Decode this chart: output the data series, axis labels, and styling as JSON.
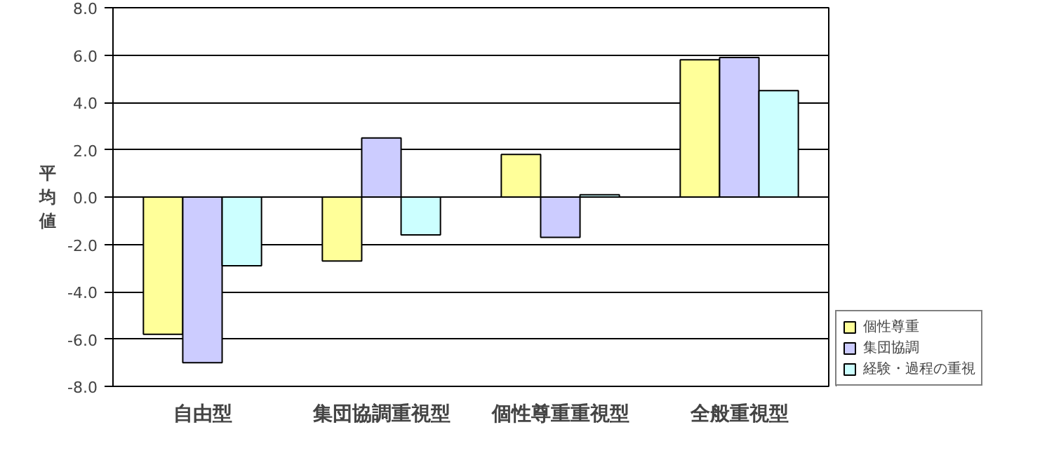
{
  "chart_data": {
    "type": "bar",
    "ylabel": "平均値",
    "categories": [
      "自由型",
      "集団協調重視型",
      "個性尊重重視型",
      "全般重視型"
    ],
    "series": [
      {
        "name": "個性尊重",
        "color": "#ffff99",
        "values": [
          -5.8,
          -2.7,
          1.8,
          5.8
        ]
      },
      {
        "name": "集団協調",
        "color": "#ccccff",
        "values": [
          -7.0,
          2.5,
          -1.7,
          5.9
        ]
      },
      {
        "name": "経験・過程の重視",
        "color": "#ccffff",
        "values": [
          -2.9,
          -1.6,
          0.1,
          4.5
        ]
      }
    ],
    "ylim": [
      -8,
      8
    ],
    "yticks": [
      {
        "value": -8,
        "label": "-8.0"
      },
      {
        "value": -6,
        "label": "-6.0"
      },
      {
        "value": -4,
        "label": "-4.0"
      },
      {
        "value": -2,
        "label": "-2.0"
      },
      {
        "value": 0,
        "label": "0.0"
      },
      {
        "value": 2,
        "label": "2.0"
      },
      {
        "value": 4,
        "label": "4.0"
      },
      {
        "value": 6,
        "label": "6.0"
      },
      {
        "value": 8,
        "label": "8.0"
      }
    ],
    "grid": "y",
    "legend": "bottom right"
  }
}
